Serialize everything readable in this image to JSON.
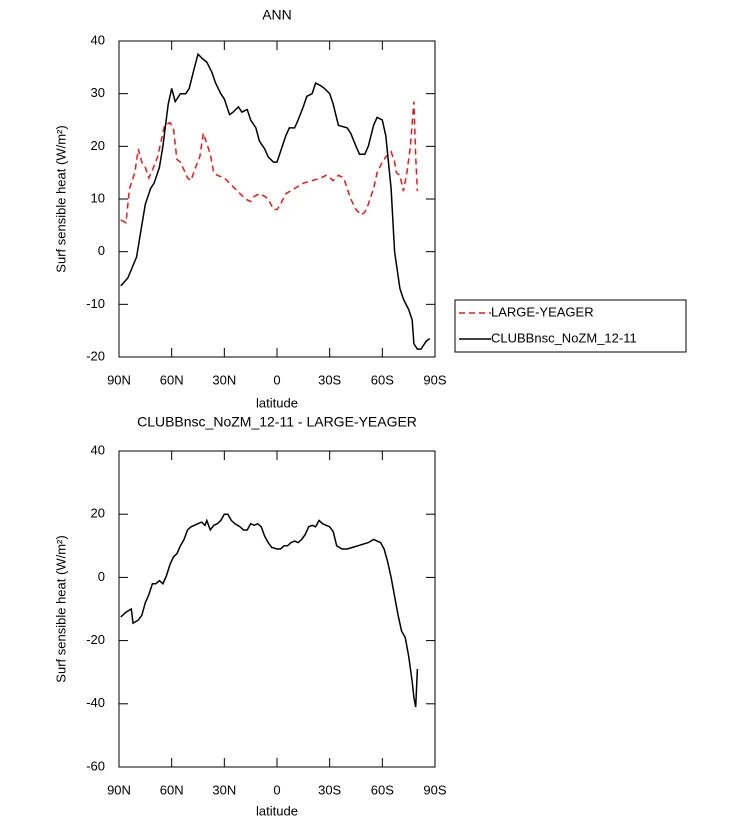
{
  "chart_data": [
    {
      "type": "line",
      "title": "ANN",
      "xlabel": "latitude",
      "ylabel": "Surf sensible heat (W/m²)",
      "xlim": [
        90,
        -90
      ],
      "xticks": [
        {
          "value": 90,
          "label": "90N"
        },
        {
          "value": 60,
          "label": "60N"
        },
        {
          "value": 30,
          "label": "30N"
        },
        0,
        {
          "value": -30,
          "label": "30S"
        },
        {
          "value": -60,
          "label": "60S"
        },
        {
          "value": -90,
          "label": "90S"
        }
      ],
      "ylim": [
        -20,
        40
      ],
      "yticks": [
        -20,
        -10,
        0,
        10,
        20,
        30,
        40
      ],
      "legend": "right",
      "series": [
        {
          "name": "LARGE-YEAGER",
          "color": "#e41a1c",
          "dashed": true,
          "x": [
            89,
            86,
            84,
            81,
            79,
            77,
            75,
            73,
            71,
            68,
            66,
            64,
            61,
            59,
            57,
            55,
            53,
            51,
            49,
            47,
            44,
            42,
            40,
            38,
            36,
            34,
            30,
            27,
            24,
            21,
            18,
            15,
            13,
            10,
            7,
            5,
            2,
            0,
            -2,
            -5,
            -10,
            -15,
            -20,
            -25,
            -28,
            -30,
            -32,
            -35,
            -38,
            -42,
            -45,
            -48,
            -50,
            -52,
            -55,
            -57,
            -60,
            -62,
            -65,
            -67,
            -68,
            -70,
            -72,
            -74,
            -76,
            -78,
            -79,
            -80
          ],
          "values": [
            6,
            5.5,
            12,
            15,
            19.5,
            17,
            16,
            14,
            15.5,
            18,
            21,
            24,
            24.5,
            23.5,
            17.5,
            17,
            15.5,
            14,
            13.5,
            15.5,
            18,
            22.5,
            20.5,
            18.5,
            15,
            14.5,
            14,
            13,
            12,
            11,
            10,
            9.5,
            10.5,
            11,
            10.5,
            10,
            8,
            8,
            9,
            11,
            12,
            13,
            13.5,
            14,
            14.5,
            14,
            13.5,
            14.5,
            14,
            10,
            8,
            7,
            7.5,
            9,
            12,
            15,
            17,
            18,
            19,
            17,
            15,
            14.5,
            11.5,
            15,
            20,
            28.5,
            18,
            11.5
          ]
        },
        {
          "name": "CLUBBnsc_NoZM_12-11",
          "color": "#000000",
          "dashed": false,
          "x": [
            89,
            85,
            80,
            77,
            75,
            72,
            70,
            67,
            65,
            62,
            60,
            58,
            55,
            52,
            50,
            47,
            45,
            42,
            40,
            37,
            35,
            32,
            30,
            27,
            25,
            22,
            20,
            17,
            15,
            12,
            10,
            7,
            5,
            2,
            0,
            -2,
            -5,
            -7,
            -10,
            -12,
            -15,
            -17,
            -20,
            -22,
            -25,
            -27,
            -30,
            -32,
            -35,
            -40,
            -42,
            -45,
            -47,
            -50,
            -52,
            -55,
            -57,
            -60,
            -62,
            -65,
            -67,
            -70,
            -72,
            -75,
            -77,
            -78,
            -80,
            -82,
            -85,
            -87
          ],
          "values": [
            -6.5,
            -5,
            -1,
            5,
            9,
            12,
            13,
            16,
            20,
            28,
            31,
            28.5,
            30,
            30,
            31,
            35,
            37.5,
            36.5,
            36,
            34,
            32,
            30,
            29,
            26,
            26.5,
            27.5,
            26.5,
            27,
            25,
            23.5,
            21,
            19.5,
            18,
            17,
            17,
            19,
            22,
            23.5,
            23.5,
            25,
            27.5,
            29.5,
            30,
            32,
            31.5,
            31,
            30,
            28,
            24,
            23.5,
            22.5,
            20,
            18.5,
            18.5,
            20,
            24,
            25.5,
            25,
            22,
            12,
            0,
            -7,
            -9,
            -11,
            -13,
            -17.5,
            -18.5,
            -18.5,
            -17,
            -16.5
          ]
        }
      ]
    },
    {
      "type": "line",
      "title": "CLUBBnsc_NoZM_12-11 - LARGE-YEAGER",
      "xlabel": "latitude",
      "ylabel": "Surf sensible heat (W/m²)",
      "xlim": [
        90,
        -90
      ],
      "xticks": [
        {
          "value": 90,
          "label": "90N"
        },
        {
          "value": 60,
          "label": "60N"
        },
        {
          "value": 30,
          "label": "30N"
        },
        0,
        {
          "value": -30,
          "label": "30S"
        },
        {
          "value": -60,
          "label": "60S"
        },
        {
          "value": -90,
          "label": "90S"
        }
      ],
      "ylim": [
        -60,
        40
      ],
      "yticks": [
        -60,
        -40,
        -20,
        0,
        20,
        40
      ],
      "series": [
        {
          "color": "#000000",
          "dashed": false,
          "x": [
            89,
            86,
            83,
            82,
            79,
            77,
            75,
            73,
            71,
            69,
            67,
            65,
            63,
            61,
            59,
            57,
            55,
            53,
            51,
            49,
            47,
            45,
            43,
            41,
            40,
            38,
            36,
            34,
            32,
            30,
            28,
            26,
            24,
            21,
            19,
            17,
            15,
            13,
            11,
            9,
            7,
            5,
            3,
            0,
            -2,
            -4,
            -6,
            -8,
            -10,
            -12,
            -14,
            -16,
            -18,
            -20,
            -22,
            -24,
            -26,
            -28,
            -30,
            -32,
            -34,
            -37,
            -40,
            -43,
            -46,
            -49,
            -52,
            -55,
            -57,
            -59,
            -61,
            -63,
            -65,
            -67,
            -69,
            -71,
            -73,
            -75,
            -77,
            -78,
            -79,
            -80
          ],
          "values": [
            -12.5,
            -11,
            -10,
            -14.5,
            -13.5,
            -12,
            -8,
            -5.5,
            -2,
            -2,
            -1,
            -2,
            0.5,
            4,
            6.5,
            7.5,
            10,
            12,
            15,
            16,
            16.5,
            17,
            17.5,
            16.5,
            18,
            15,
            16.5,
            17,
            18,
            20,
            20,
            18,
            17,
            16,
            15,
            15,
            17,
            16.5,
            17,
            16,
            13,
            11,
            9.5,
            9,
            9,
            10,
            10,
            11,
            11.5,
            11,
            12,
            13.5,
            16,
            16.5,
            16,
            18,
            17,
            16.5,
            16,
            14.5,
            10,
            9,
            9,
            9.5,
            10,
            10.5,
            11,
            12,
            11.5,
            11,
            9,
            5,
            0,
            -6,
            -12,
            -17,
            -19,
            -25,
            -33,
            -38,
            -41,
            -29
          ]
        }
      ]
    }
  ]
}
